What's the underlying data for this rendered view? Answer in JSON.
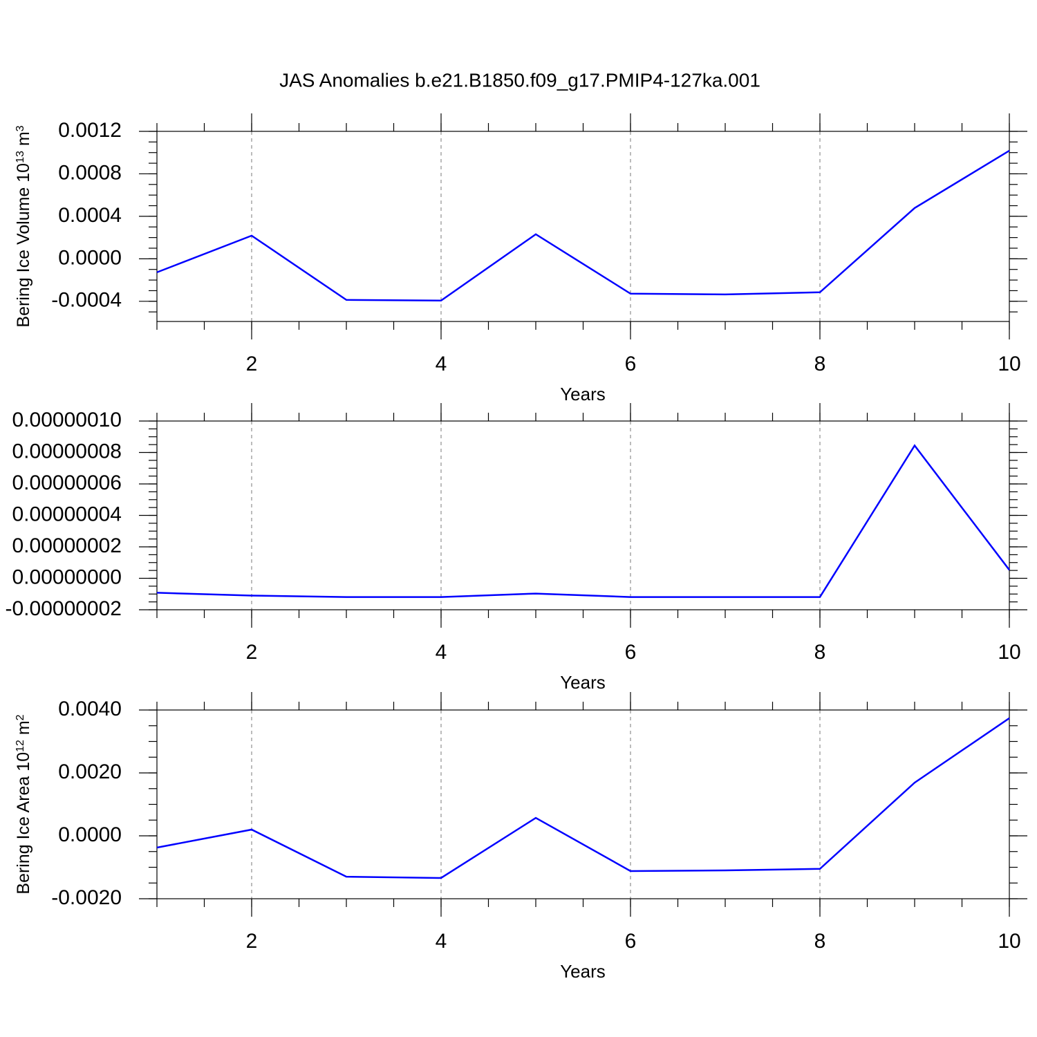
{
  "chart_data": [
    {
      "type": "line",
      "title": "JAS Anomalies b.e21.B1850.f09_g17.PMIP4-127ka.001",
      "ylabel": [
        "Bering Ice Volume 10",
        "13",
        " m",
        "3"
      ],
      "xlabel": "Years",
      "x": [
        1,
        2,
        3,
        4,
        5,
        6,
        7,
        8,
        9,
        10
      ],
      "series": [
        {
          "color": "#0000ff",
          "values": [
            -0.000127,
            0.000218,
            -0.000387,
            -0.000393,
            0.000231,
            -0.000328,
            -0.000335,
            -0.000315,
            0.000478,
            0.001018
          ]
        }
      ],
      "xlim": [
        1,
        10
      ],
      "xticks": [
        2,
        4,
        6,
        8,
        10
      ],
      "ylim": [
        -0.00059,
        0.0012
      ],
      "yticks": [
        {
          "value": -0.0004,
          "label": "-0.0004"
        },
        {
          "value": 0,
          "label": "0.0000"
        },
        {
          "value": 0.0004,
          "label": "0.0004"
        },
        {
          "value": 0.0008,
          "label": "0.0008"
        },
        {
          "value": 0.0012,
          "label": "0.0012"
        }
      ],
      "xgrid": true
    },
    {
      "type": "line",
      "xlabel": "Years",
      "x": [
        1,
        2,
        3,
        4,
        5,
        6,
        7,
        8,
        9,
        10
      ],
      "series": [
        {
          "color": "#0000ff",
          "values": [
            -9.2e-09,
            -1.1e-08,
            -1.19e-08,
            -1.19e-08,
            -9.7e-09,
            -1.19e-08,
            -1.19e-08,
            -1.19e-08,
            8.44e-08,
            5.3e-09
          ]
        }
      ],
      "xlim": [
        1,
        10
      ],
      "xticks": [
        2,
        4,
        6,
        8,
        10
      ],
      "ylim": [
        -2e-08,
        1e-07
      ],
      "yticks": [
        {
          "value": -2e-08,
          "label": "-0.00000002"
        },
        {
          "value": 0,
          "label": "0.00000000"
        },
        {
          "value": 2e-08,
          "label": "0.00000002"
        },
        {
          "value": 4e-08,
          "label": "0.00000004"
        },
        {
          "value": 6e-08,
          "label": "0.00000006"
        },
        {
          "value": 8e-08,
          "label": "0.00000008"
        },
        {
          "value": 1e-07,
          "label": "0.00000010"
        }
      ],
      "xgrid": true
    },
    {
      "type": "line",
      "ylabel": [
        "Bering Ice Area 10",
        "12",
        " m",
        "2"
      ],
      "xlabel": "Years",
      "x": [
        1,
        2,
        3,
        4,
        5,
        6,
        7,
        8,
        9,
        10
      ],
      "series": [
        {
          "color": "#0000ff",
          "values": [
            -0.000374,
            0.000198,
            -0.0013,
            -0.00134,
            0.00057,
            -0.00112,
            -0.0011,
            -0.00105,
            0.00169,
            0.00374
          ]
        }
      ],
      "xlim": [
        1,
        10
      ],
      "xticks": [
        2,
        4,
        6,
        8,
        10
      ],
      "ylim": [
        -0.002,
        0.004
      ],
      "yticks": [
        {
          "value": -0.002,
          "label": "-0.0020"
        },
        {
          "value": 0,
          "label": "0.0000"
        },
        {
          "value": 0.002,
          "label": "0.0020"
        },
        {
          "value": 0.004,
          "label": "0.0040"
        }
      ],
      "xgrid": true
    }
  ]
}
